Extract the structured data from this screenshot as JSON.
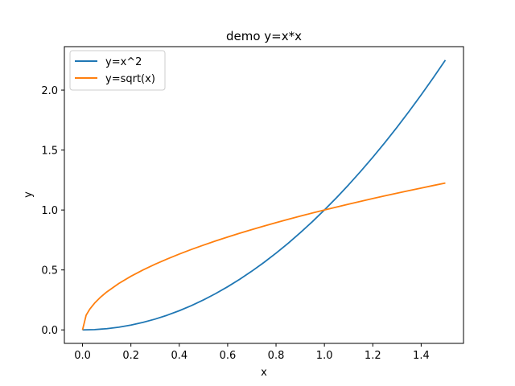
{
  "chart_data": {
    "type": "line",
    "title": "demo y=x*x",
    "xlabel": "x",
    "ylabel": "y",
    "xlim": [
      -0.075,
      1.575
    ],
    "ylim": [
      -0.1125,
      2.3625
    ],
    "xticks": [
      0.0,
      0.2,
      0.4,
      0.6,
      0.8,
      1.0,
      1.2,
      1.4
    ],
    "xtick_labels": [
      "0.0",
      "0.2",
      "0.4",
      "0.6",
      "0.8",
      "1.0",
      "1.2",
      "1.4"
    ],
    "yticks": [
      0.0,
      0.5,
      1.0,
      1.5,
      2.0
    ],
    "ytick_labels": [
      "0.0",
      "0.5",
      "1.0",
      "1.5",
      "2.0"
    ],
    "grid": false,
    "legend": "top-left",
    "series": [
      {
        "name": "y=x^2",
        "color": "#1f77b4",
        "x": [
          0.0,
          0.05,
          0.1,
          0.15,
          0.2,
          0.25,
          0.3,
          0.35,
          0.4,
          0.45,
          0.5,
          0.55,
          0.6,
          0.65,
          0.7,
          0.75,
          0.8,
          0.85,
          0.9,
          0.95,
          1.0,
          1.05,
          1.1,
          1.15,
          1.2,
          1.25,
          1.3,
          1.35,
          1.4,
          1.45,
          1.5
        ],
        "y": [
          0.0,
          0.0025,
          0.01,
          0.0225,
          0.04,
          0.0625,
          0.09,
          0.1225,
          0.16,
          0.2025,
          0.25,
          0.3025,
          0.36,
          0.4225,
          0.49,
          0.5625,
          0.64,
          0.7225,
          0.81,
          0.9025,
          1.0,
          1.1025,
          1.21,
          1.3225,
          1.44,
          1.5625,
          1.69,
          1.8225,
          1.96,
          2.1025,
          2.25
        ]
      },
      {
        "name": "y=sqrt(x)",
        "color": "#ff7f0e",
        "x": [
          0.0,
          0.015,
          0.03,
          0.05,
          0.075,
          0.1,
          0.15,
          0.2,
          0.25,
          0.3,
          0.35,
          0.4,
          0.45,
          0.5,
          0.55,
          0.6,
          0.65,
          0.7,
          0.75,
          0.8,
          0.85,
          0.9,
          0.95,
          1.0,
          1.05,
          1.1,
          1.15,
          1.2,
          1.25,
          1.3,
          1.35,
          1.4,
          1.45,
          1.5
        ],
        "y": [
          0.0,
          0.1225,
          0.1732,
          0.2236,
          0.2739,
          0.3162,
          0.3873,
          0.4472,
          0.5,
          0.5477,
          0.5916,
          0.6325,
          0.6708,
          0.7071,
          0.7416,
          0.7746,
          0.8062,
          0.8367,
          0.866,
          0.8944,
          0.922,
          0.9487,
          0.9747,
          1.0,
          1.0247,
          1.0488,
          1.0724,
          1.0954,
          1.118,
          1.1402,
          1.1619,
          1.1832,
          1.2042,
          1.2247
        ]
      }
    ]
  }
}
